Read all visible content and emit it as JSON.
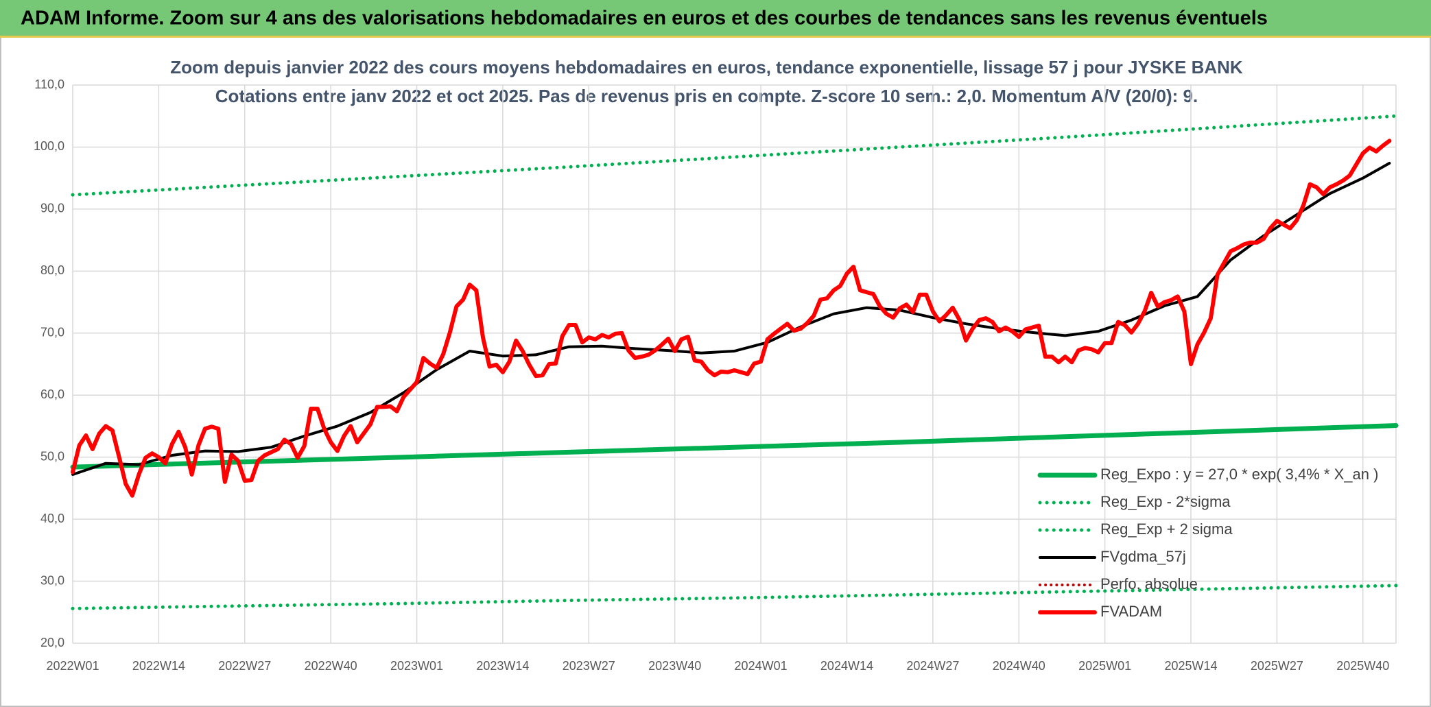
{
  "header": {
    "title": "ADAM Informe. Zoom sur 4 ans des valorisations hebdomadaires en euros et des courbes de tendances sans les revenus éventuels"
  },
  "chart_data": {
    "type": "line",
    "title": "Zoom depuis janvier 2022 des cours moyens hebdomadaires en euros, tendance exponentielle, lissage 57 j pour JYSKE BANK",
    "subtitle": "Cotations entre janv 2022 et oct 2025. Pas de revenus pris en compte. Z-score 10 sem.: 2,0. Momentum A/V (20/0): 9.",
    "xlim": [
      0,
      200
    ],
    "xticks": [
      {
        "value": 0,
        "label": "2022W01"
      },
      {
        "value": 13,
        "label": "2022W14"
      },
      {
        "value": 26,
        "label": "2022W27"
      },
      {
        "value": 39,
        "label": "2022W40"
      },
      {
        "value": 52,
        "label": "2023W01"
      },
      {
        "value": 65,
        "label": "2023W14"
      },
      {
        "value": 78,
        "label": "2023W27"
      },
      {
        "value": 91,
        "label": "2023W40"
      },
      {
        "value": 104,
        "label": "2024W01"
      },
      {
        "value": 117,
        "label": "2024W14"
      },
      {
        "value": 130,
        "label": "2024W27"
      },
      {
        "value": 143,
        "label": "2024W40"
      },
      {
        "value": 156,
        "label": "2025W01"
      },
      {
        "value": 169,
        "label": "2025W14"
      },
      {
        "value": 182,
        "label": "2025W27"
      },
      {
        "value": 195,
        "label": "2025W40"
      }
    ],
    "ylim": [
      20,
      110
    ],
    "yticks": [
      {
        "value": 20,
        "label": "20,0"
      },
      {
        "value": 30,
        "label": "30,0"
      },
      {
        "value": 40,
        "label": "40,0"
      },
      {
        "value": 50,
        "label": "50,0"
      },
      {
        "value": 60,
        "label": "60,0"
      },
      {
        "value": 70,
        "label": "70,0"
      },
      {
        "value": 80,
        "label": "80,0"
      },
      {
        "value": 90,
        "label": "90,0"
      },
      {
        "value": 100,
        "label": "100,0"
      },
      {
        "value": 110,
        "label": "110,0"
      }
    ],
    "grid": true,
    "legend": "lower right",
    "series": [
      {
        "name": "Reg_Expo : y = 27,0 * exp( 3,4% *  X_an )",
        "color": "#00b050",
        "dash": "solid",
        "width": 7,
        "x": [
          0,
          25,
          50,
          75,
          100,
          125,
          150,
          175,
          200
        ],
        "values": [
          48.4,
          49.2,
          50.0,
          50.8,
          51.6,
          52.4,
          53.3,
          54.2,
          55.1
        ]
      },
      {
        "name": "Reg_Exp - 2*sigma",
        "color": "#00b050",
        "dash": "dotted",
        "width": 5,
        "x": [
          0,
          25,
          50,
          75,
          100,
          125,
          150,
          175,
          200
        ],
        "values": [
          25.6,
          26.0,
          26.4,
          26.9,
          27.3,
          27.8,
          28.3,
          28.8,
          29.3
        ]
      },
      {
        "name": "Reg_Exp + 2 sigma",
        "color": "#00b050",
        "dash": "dotted",
        "width": 5,
        "x": [
          0,
          25,
          50,
          75,
          100,
          125,
          150,
          175,
          200
        ],
        "values": [
          92.3,
          93.8,
          95.3,
          96.8,
          98.4,
          100.0,
          101.6,
          103.3,
          105.0
        ]
      },
      {
        "name": "FVgdma_57j",
        "color": "#000000",
        "dash": "solid",
        "width": 4,
        "x": [
          0,
          5,
          10,
          15,
          20,
          25,
          30,
          35,
          40,
          45,
          50,
          55,
          60,
          65,
          70,
          75,
          80,
          85,
          90,
          95,
          100,
          105,
          110,
          115,
          120,
          125,
          130,
          135,
          140,
          145,
          150,
          155,
          160,
          165,
          170,
          175,
          180,
          185,
          190,
          195,
          199
        ],
        "values": [
          47.2,
          49.0,
          48.8,
          50.3,
          51.0,
          50.9,
          51.6,
          53.4,
          55.0,
          57.2,
          60.4,
          64.1,
          67.1,
          66.3,
          66.5,
          67.8,
          67.9,
          67.5,
          67.2,
          66.8,
          67.1,
          68.5,
          71.0,
          73.1,
          74.1,
          73.7,
          72.5,
          71.5,
          70.7,
          70.1,
          69.6,
          70.3,
          72.1,
          74.4,
          75.9,
          81.8,
          85.7,
          89.1,
          92.5,
          95.0,
          97.4
        ]
      },
      {
        "name": "Perfo. absolue",
        "color": "#c00000",
        "dash": "dotted",
        "width": 4,
        "x": [],
        "values": []
      },
      {
        "name": "FVADAM",
        "color": "#ff0000",
        "dash": "solid",
        "width": 6,
        "x": [
          0,
          1,
          2,
          3,
          4,
          5,
          6,
          7,
          8,
          9,
          10,
          11,
          12,
          13,
          14,
          15,
          16,
          17,
          18,
          19,
          20,
          21,
          22,
          23,
          24,
          25,
          26,
          27,
          28,
          29,
          31,
          32,
          33,
          34,
          35,
          36,
          37,
          38,
          39,
          40,
          41,
          42,
          43,
          45,
          46,
          47,
          48,
          49,
          50,
          52,
          53,
          54,
          55,
          56,
          57,
          58,
          59,
          60,
          61,
          62,
          63,
          64,
          65,
          66,
          67,
          68,
          69,
          70,
          71,
          72,
          73,
          74,
          75,
          76,
          77,
          78,
          79,
          80,
          81,
          82,
          83,
          84,
          85,
          86,
          87,
          88,
          89,
          90,
          91,
          92,
          93,
          94,
          95,
          96,
          97,
          98,
          99,
          100,
          101,
          102,
          103,
          104,
          105,
          106,
          107,
          108,
          109,
          110,
          111,
          112,
          113,
          114,
          115,
          116,
          117,
          118,
          119,
          120,
          121,
          122,
          123,
          124,
          125,
          126,
          127,
          128,
          129,
          130,
          131,
          132,
          133,
          134,
          135,
          136,
          137,
          138,
          139,
          140,
          141,
          142,
          143,
          144,
          145,
          146,
          147,
          148,
          149,
          150,
          151,
          152,
          153,
          154,
          155,
          156,
          157,
          158,
          159,
          160,
          161,
          162,
          163,
          164,
          165,
          166,
          167,
          168,
          169,
          170,
          171,
          172,
          173,
          174,
          175,
          176,
          177,
          178,
          179,
          180,
          181,
          182,
          183,
          184,
          185,
          186,
          187,
          188,
          189,
          190,
          191,
          192,
          193,
          194,
          195,
          196,
          197,
          198,
          199
        ],
        "values": [
          47.6,
          51.9,
          53.5,
          51.3,
          53.8,
          55.0,
          54.3,
          50.1,
          45.7,
          43.8,
          47.2,
          49.9,
          50.6,
          50.0,
          49.0,
          52.1,
          54.1,
          51.6,
          47.2,
          51.9,
          54.6,
          54.9,
          54.6,
          46.0,
          50.4,
          49.4,
          46.2,
          46.3,
          49.4,
          50.3,
          51.3,
          52.8,
          52.1,
          49.9,
          51.8,
          57.8,
          57.8,
          54.6,
          52.4,
          51.0,
          53.4,
          55.0,
          52.4,
          55.3,
          58.1,
          58.1,
          58.2,
          57.4,
          59.7,
          62.1,
          66.0,
          65.1,
          64.4,
          66.6,
          70.1,
          74.3,
          75.4,
          77.8,
          76.9,
          69.3,
          64.6,
          64.9,
          63.7,
          65.4,
          68.8,
          67.1,
          64.9,
          63.1,
          63.2,
          65.0,
          65.1,
          69.5,
          71.3,
          71.3,
          68.5,
          69.3,
          69.0,
          69.7,
          69.3,
          69.9,
          70.0,
          67.2,
          66.0,
          66.2,
          66.5,
          67.2,
          68.1,
          69.1,
          67.1,
          69.0,
          69.4,
          65.6,
          65.4,
          64.0,
          63.2,
          63.8,
          63.7,
          64.0,
          63.7,
          63.4,
          65.1,
          65.4,
          69.0,
          69.9,
          70.7,
          71.5,
          70.4,
          70.7,
          71.6,
          72.8,
          75.4,
          75.6,
          76.9,
          77.6,
          79.6,
          80.7,
          76.9,
          76.6,
          76.3,
          74.3,
          73.1,
          72.5,
          74.0,
          74.6,
          73.4,
          76.2,
          76.2,
          73.5,
          71.9,
          72.9,
          74.1,
          72.2,
          68.8,
          70.7,
          72.1,
          72.4,
          71.8,
          70.3,
          70.9,
          70.3,
          69.4,
          70.6,
          70.9,
          71.2,
          66.2,
          66.2,
          65.3,
          66.2,
          65.3,
          67.2,
          67.6,
          67.4,
          66.9,
          68.4,
          68.4,
          71.8,
          71.3,
          70.1,
          71.5,
          73.5,
          76.5,
          74.3,
          75.0,
          75.3,
          75.9,
          73.5,
          65.0,
          68.2,
          70.1,
          72.4,
          79.4,
          81.3,
          83.2,
          83.7,
          84.3,
          84.6,
          84.6,
          85.2,
          86.9,
          88.1,
          87.5,
          86.9,
          88.2,
          90.6,
          94.0,
          93.5,
          92.4,
          93.5,
          94.0,
          94.6,
          95.4,
          97.2,
          99.0,
          99.9,
          99.3,
          100.2,
          101.0
        ]
      }
    ]
  }
}
